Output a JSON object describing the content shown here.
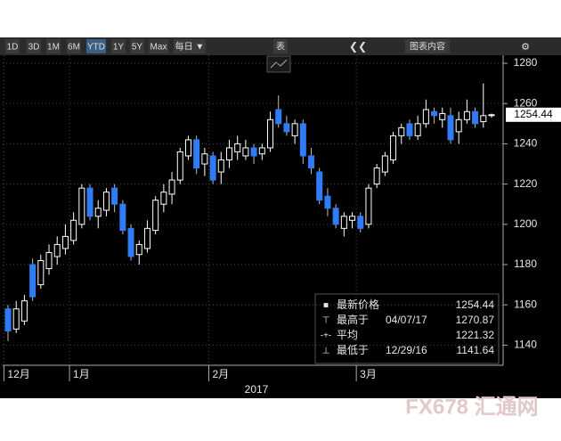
{
  "toolbar": {
    "buttons": [
      "1D",
      "3D",
      "1M",
      "6M",
      "YTD",
      "1Y",
      "5Y",
      "Max",
      "每日 ▼",
      "表",
      "图表内容"
    ],
    "active": "YTD"
  },
  "watermark": "FX678 汇通网",
  "chart_data": {
    "type": "candlestick",
    "categories": [
      null,
      null,
      null,
      null,
      null,
      null,
      null,
      null,
      null,
      null,
      null,
      null,
      null,
      null,
      null,
      null,
      null,
      null,
      null,
      null,
      null,
      null,
      null,
      null,
      null,
      null,
      null,
      null,
      null,
      null,
      null,
      null,
      null,
      null,
      null,
      null,
      null,
      null,
      null,
      null,
      null,
      null,
      null,
      null,
      null,
      null,
      null,
      null,
      null,
      null,
      null,
      null,
      null,
      null,
      null,
      null,
      null,
      null,
      null,
      null
    ],
    "month_ticks": [
      {
        "index": 0,
        "label": "12月"
      },
      {
        "index": 8,
        "label": "1月"
      },
      {
        "index": 25,
        "label": "2月"
      },
      {
        "index": 43,
        "label": "3月"
      }
    ],
    "x_group_label": "2017",
    "open": [
      1158,
      1148,
      1152,
      1180,
      1170,
      1178,
      1184,
      1188,
      1192,
      1200,
      1218,
      1204,
      1207,
      1218,
      1210,
      1198,
      1185,
      1188,
      1197,
      1210,
      1215,
      1222,
      1234,
      1242,
      1230,
      1234,
      1226,
      1232,
      1236,
      1234,
      1238,
      1235,
      1238,
      1257,
      1250,
      1244,
      1250,
      1234,
      1226,
      1214,
      1208,
      1198,
      1202,
      1204,
      1200,
      1220,
      1226,
      1232,
      1244,
      1250,
      1244,
      1250,
      1256,
      1252,
      1254,
      1246,
      1252,
      1256,
      1251,
      1254
    ],
    "high": [
      1160,
      1162,
      1165,
      1183,
      1185,
      1190,
      1194,
      1200,
      1206,
      1220,
      1220,
      1212,
      1218,
      1220,
      1212,
      1200,
      1192,
      1202,
      1214,
      1220,
      1226,
      1238,
      1244,
      1244,
      1238,
      1236,
      1236,
      1242,
      1244,
      1242,
      1240,
      1240,
      1256,
      1264,
      1254,
      1252,
      1252,
      1238,
      1228,
      1218,
      1210,
      1206,
      1206,
      1206,
      1220,
      1230,
      1236,
      1246,
      1250,
      1252,
      1254,
      1262,
      1258,
      1258,
      1258,
      1256,
      1262,
      1258,
      1270,
      1255
    ],
    "low": [
      1142,
      1146,
      1150,
      1162,
      1168,
      1175,
      1180,
      1185,
      1190,
      1198,
      1202,
      1198,
      1204,
      1206,
      1195,
      1182,
      1180,
      1186,
      1195,
      1206,
      1210,
      1220,
      1232,
      1225,
      1224,
      1220,
      1220,
      1228,
      1232,
      1232,
      1230,
      1232,
      1236,
      1248,
      1244,
      1240,
      1230,
      1225,
      1210,
      1204,
      1198,
      1194,
      1198,
      1196,
      1198,
      1218,
      1224,
      1230,
      1240,
      1242,
      1242,
      1248,
      1250,
      1248,
      1240,
      1240,
      1250,
      1248,
      1248,
      1253
    ],
    "close": [
      1147,
      1158,
      1162,
      1164,
      1182,
      1186,
      1190,
      1194,
      1202,
      1218,
      1204,
      1208,
      1216,
      1210,
      1197,
      1184,
      1190,
      1198,
      1212,
      1216,
      1222,
      1236,
      1242,
      1228,
      1235,
      1222,
      1232,
      1238,
      1240,
      1238,
      1234,
      1238,
      1252,
      1250,
      1246,
      1250,
      1234,
      1228,
      1212,
      1208,
      1200,
      1204,
      1204,
      1198,
      1218,
      1228,
      1234,
      1244,
      1248,
      1244,
      1250,
      1257,
      1254,
      1255,
      1242,
      1252,
      1256,
      1250,
      1254,
      1254.44
    ],
    "up_color": "#ffffff",
    "down_color": "#2f7cf6",
    "ylim": [
      1130,
      1284
    ],
    "yticks": [
      1140,
      1160,
      1180,
      1200,
      1220,
      1240,
      1260,
      1280
    ],
    "grid": true,
    "summary": [
      {
        "label": "最新价格",
        "value": 1254.44
      },
      {
        "label": "最高于",
        "date": "04/07/17",
        "value": 1270.87
      },
      {
        "label": "平均",
        "value": 1221.32
      },
      {
        "label": "最低于",
        "date": "12/29/16",
        "value": 1141.64
      }
    ]
  }
}
